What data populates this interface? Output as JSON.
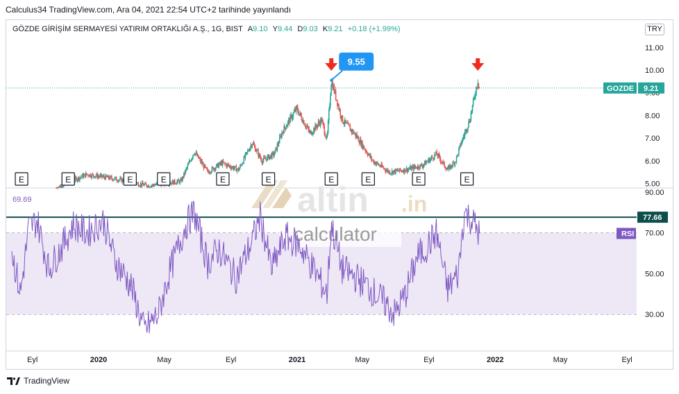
{
  "header": {
    "publish_line": "Calculus34 TradingView.com, Ara 04, 2021 22:54 UTC+2 tarihinde yayınlandı"
  },
  "legend": {
    "symbol": "GÖZDE GİRİŞİM SERMAYESİ YATIRIM ORTAKLIĞI A.Ş., 1G, BIST",
    "open_label": "A",
    "open": "9.10",
    "high_label": "Y",
    "high": "9.44",
    "low_label": "D",
    "low": "9.03",
    "close_label": "K",
    "close": "9.21",
    "change": "+0.18 (+1.99%)"
  },
  "currency": "TRY",
  "footer": {
    "brand": "TradingView"
  },
  "watermark": {
    "brand": "altin",
    "suffix": ".in",
    "sub": "calculator"
  },
  "colors": {
    "up": "#26a69a",
    "down": "#ef5350",
    "rsi": "#7e57c2",
    "rsi_band": "#ede7f6",
    "level_line": "#0d4d4b",
    "callout": "#2196f3"
  },
  "chart_data": [
    {
      "type": "candlestick",
      "symbol": "GOZDE",
      "last_value": "9.21",
      "last_label": "GOZDE",
      "y_ticks": [
        "11.00",
        "10.00",
        "9.00",
        "8.00",
        "7.00",
        "6.00",
        "5.00"
      ],
      "ylim": [
        4.8,
        11.5
      ],
      "callout": {
        "text": "9.55",
        "date": "2021-03-05",
        "value": 9.55
      },
      "arrow_markers": [
        {
          "date": "2021-03-05",
          "icon": "arrow-down-icon"
        },
        {
          "date": "2021-11-30",
          "icon": "arrow-down-icon"
        }
      ],
      "earnings_markers": {
        "label": "E",
        "dates": [
          "2019-08-12",
          "2019-11-06",
          "2020-02-28",
          "2020-04-30",
          "2020-08-17",
          "2020-11-09",
          "2021-03-05",
          "2021-05-12",
          "2021-08-13",
          "2021-11-10"
        ]
      },
      "trend": [
        [
          "2019-10-15",
          4.8
        ],
        [
          "2019-12-10",
          5.4
        ],
        [
          "2020-02-01",
          5.2
        ],
        [
          "2020-04-01",
          4.9
        ],
        [
          "2020-06-01",
          5.1
        ],
        [
          "2020-06-25",
          6.4
        ],
        [
          "2020-07-20",
          5.5
        ],
        [
          "2020-08-15",
          5.9
        ],
        [
          "2020-09-15",
          5.6
        ],
        [
          "2020-10-10",
          6.8
        ],
        [
          "2020-10-28",
          6.0
        ],
        [
          "2020-11-20",
          6.3
        ],
        [
          "2020-12-05",
          7.3
        ],
        [
          "2020-12-31",
          8.3
        ],
        [
          "2021-01-25",
          7.2
        ],
        [
          "2021-02-15",
          7.8
        ],
        [
          "2021-02-25",
          6.9
        ],
        [
          "2021-03-05",
          9.55
        ],
        [
          "2021-03-25",
          7.8
        ],
        [
          "2021-04-20",
          7.1
        ],
        [
          "2021-05-20",
          6.0
        ],
        [
          "2021-06-20",
          5.5
        ],
        [
          "2021-07-20",
          5.6
        ],
        [
          "2021-08-20",
          5.8
        ],
        [
          "2021-09-15",
          6.3
        ],
        [
          "2021-10-05",
          5.6
        ],
        [
          "2021-10-20",
          6.0
        ],
        [
          "2021-11-01",
          6.9
        ],
        [
          "2021-11-15",
          7.8
        ],
        [
          "2021-11-30",
          9.55
        ],
        [
          "2021-12-03",
          9.21
        ]
      ],
      "x_ticks": [
        [
          "2019-09-01",
          "Eyl"
        ],
        [
          "2020-01-01",
          "2020"
        ],
        [
          "2020-05-01",
          "May"
        ],
        [
          "2020-09-01",
          "Eyl"
        ],
        [
          "2021-01-01",
          "2021"
        ],
        [
          "2021-05-01",
          "May"
        ],
        [
          "2021-09-01",
          "Eyl"
        ],
        [
          "2022-01-01",
          "2022"
        ],
        [
          "2022-05-01",
          "May"
        ],
        [
          "2022-09-01",
          "Eyl"
        ]
      ]
    },
    {
      "type": "line",
      "indicator": "RSI",
      "current_value": "69.69",
      "level_value": "77.66",
      "level_label": "77.66",
      "series_label": "RSI",
      "y_ticks": [
        "90.00",
        "70.00",
        "50.00",
        "30.00"
      ],
      "ylim": [
        12,
        92
      ],
      "band": [
        30,
        70
      ],
      "midline": 50,
      "trend": [
        [
          "2019-07-25",
          61
        ],
        [
          "2019-08-10",
          40
        ],
        [
          "2019-08-25",
          72
        ],
        [
          "2019-09-10",
          76
        ],
        [
          "2019-10-01",
          52
        ],
        [
          "2019-10-25",
          63
        ],
        [
          "2019-11-15",
          74
        ],
        [
          "2019-12-10",
          70
        ],
        [
          "2020-01-10",
          76
        ],
        [
          "2020-02-01",
          56
        ],
        [
          "2020-03-01",
          44
        ],
        [
          "2020-03-25",
          22
        ],
        [
          "2020-04-20",
          30
        ],
        [
          "2020-05-10",
          50
        ],
        [
          "2020-06-10",
          74
        ],
        [
          "2020-06-25",
          80
        ],
        [
          "2020-07-20",
          55
        ],
        [
          "2020-08-10",
          62
        ],
        [
          "2020-09-10",
          48
        ],
        [
          "2020-10-10",
          66
        ],
        [
          "2020-10-25",
          78
        ],
        [
          "2020-11-15",
          52
        ],
        [
          "2020-12-10",
          68
        ],
        [
          "2021-01-05",
          64
        ],
        [
          "2021-02-05",
          50
        ],
        [
          "2021-02-25",
          40
        ],
        [
          "2021-03-05",
          74
        ],
        [
          "2021-03-25",
          52
        ],
        [
          "2021-04-20",
          48
        ],
        [
          "2021-05-10",
          44
        ],
        [
          "2021-06-10",
          36
        ],
        [
          "2021-06-30",
          30
        ],
        [
          "2021-07-20",
          40
        ],
        [
          "2021-08-10",
          58
        ],
        [
          "2021-08-25",
          62
        ],
        [
          "2021-09-15",
          70
        ],
        [
          "2021-10-05",
          42
        ],
        [
          "2021-10-25",
          50
        ],
        [
          "2021-11-05",
          80
        ],
        [
          "2021-11-20",
          76
        ],
        [
          "2021-12-03",
          69.69
        ]
      ]
    }
  ]
}
